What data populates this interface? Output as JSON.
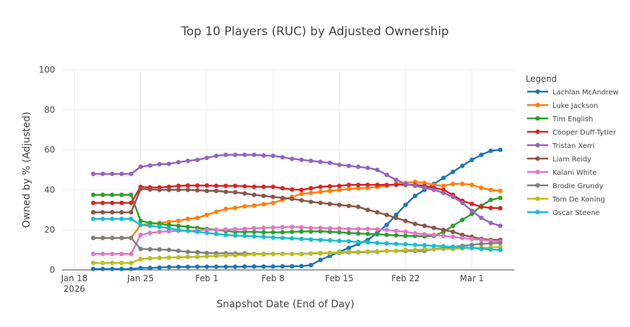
{
  "chart_data": {
    "type": "line",
    "title": "Top 10 Players (RUC) by Adjusted Ownership",
    "xlabel": "Snapshot Date (End of Day)",
    "ylabel": "Owned by % (Adjusted)",
    "ylim": [
      0,
      100
    ],
    "yticks": [
      0,
      20,
      40,
      60,
      80,
      100
    ],
    "xticks": [
      {
        "day": 0,
        "label": "Jan 18",
        "sublabel": "2026"
      },
      {
        "day": 7,
        "label": "Jan 25",
        "sublabel": ""
      },
      {
        "day": 14,
        "label": "Feb 1",
        "sublabel": ""
      },
      {
        "day": 21,
        "label": "Feb 8",
        "sublabel": ""
      },
      {
        "day": 28,
        "label": "Feb 15",
        "sublabel": ""
      },
      {
        "day": 35,
        "label": "Feb 22",
        "sublabel": ""
      },
      {
        "day": 42,
        "label": "Mar 1",
        "sublabel": ""
      }
    ],
    "xlim_days": [
      -1.3,
      46.5
    ],
    "x_days": [
      2,
      3,
      4,
      5,
      6,
      7,
      8,
      9,
      10,
      11,
      12,
      13,
      14,
      15,
      16,
      17,
      18,
      19,
      20,
      21,
      22,
      23,
      24,
      25,
      26,
      27,
      28,
      29,
      30,
      31,
      32,
      33,
      34,
      35,
      36,
      37,
      38,
      39,
      40,
      41,
      42,
      43,
      44,
      45
    ],
    "legend_title": "Legend",
    "legend_position": "right",
    "series": [
      {
        "name": "Lachlan McAndrew",
        "color": "#1f77b4",
        "values": [
          0.5,
          0.5,
          0.5,
          0.5,
          0.5,
          0.9,
          1.0,
          1.2,
          1.4,
          1.5,
          1.5,
          1.6,
          1.6,
          1.6,
          1.6,
          1.6,
          1.7,
          1.7,
          1.7,
          1.7,
          1.8,
          1.8,
          1.9,
          2.4,
          5.0,
          7.0,
          9.0,
          11.0,
          13.0,
          15.0,
          18.5,
          22.5,
          27.5,
          32.5,
          37.0,
          40.0,
          43.0,
          46.0,
          49.0,
          52.0,
          55.0,
          57.5,
          59.5,
          60.0
        ]
      },
      {
        "name": "Luke Jackson",
        "color": "#ff7f0e",
        "values": [
          16,
          16,
          16,
          16,
          16,
          22.5,
          23.0,
          23.5,
          24.0,
          24.5,
          25.5,
          26.0,
          27.5,
          29.0,
          30.5,
          31.0,
          31.8,
          32.2,
          32.8,
          33.5,
          35.0,
          36.5,
          38.0,
          38.5,
          39.0,
          39.5,
          40.0,
          40.5,
          40.8,
          41.0,
          41.5,
          42.0,
          43.0,
          43.5,
          44.0,
          43.5,
          42.5,
          42.0,
          43.0,
          43.0,
          42.5,
          41.0,
          40.0,
          39.5
        ]
      },
      {
        "name": "Tim English",
        "color": "#2ca02c",
        "values": [
          37.5,
          37.5,
          37.5,
          37.5,
          37.5,
          24.5,
          23.5,
          23.0,
          22.5,
          22.0,
          21.5,
          21.0,
          20.5,
          20.0,
          19.5,
          19.0,
          19.0,
          19.0,
          18.8,
          18.8,
          18.8,
          19.0,
          19.2,
          19.2,
          19.3,
          19.0,
          18.8,
          18.5,
          18.2,
          18.0,
          17.8,
          17.5,
          17.3,
          17.0,
          17.0,
          16.8,
          17.0,
          19.0,
          22.0,
          25.0,
          28.0,
          32.0,
          35.0,
          36.0
        ]
      },
      {
        "name": "Cooper Duff-Tytler",
        "color": "#d62728",
        "values": [
          33.5,
          33.5,
          33.5,
          33.5,
          33.5,
          41.5,
          41.2,
          41.2,
          41.5,
          42.0,
          42.2,
          42.2,
          42.2,
          42.0,
          42.0,
          42.0,
          41.8,
          41.5,
          41.5,
          41.5,
          40.8,
          40.2,
          40.0,
          40.8,
          41.5,
          41.8,
          42.0,
          42.5,
          42.5,
          42.5,
          42.5,
          42.5,
          42.5,
          42.5,
          42.5,
          42.0,
          41.0,
          40.0,
          37.5,
          34.5,
          33.0,
          31.5,
          31.0,
          30.8
        ]
      },
      {
        "name": "Tristan Xerri",
        "color": "#9467bd",
        "values": [
          48,
          48,
          48,
          48,
          48,
          51.5,
          52.2,
          52.8,
          53.0,
          53.8,
          54.5,
          55.0,
          56.0,
          57.0,
          57.5,
          57.5,
          57.5,
          57.5,
          57.2,
          57.0,
          56.3,
          55.5,
          55.0,
          54.5,
          54.0,
          53.5,
          52.5,
          52.0,
          51.5,
          51.0,
          50.0,
          47.5,
          45.0,
          43.0,
          42.0,
          41.0,
          40.0,
          38.5,
          36.5,
          33.5,
          29.5,
          26.0,
          23.5,
          22.0
        ]
      },
      {
        "name": "Liam Reidy",
        "color": "#8c564b",
        "values": [
          28.8,
          28.8,
          28.8,
          28.8,
          28.8,
          40.5,
          40.2,
          40.0,
          40.0,
          40.0,
          40.0,
          39.8,
          39.5,
          39.5,
          39.0,
          38.8,
          38.2,
          37.5,
          37.0,
          36.5,
          36.0,
          35.5,
          34.8,
          34.0,
          33.5,
          33.0,
          32.5,
          32.0,
          31.5,
          30.0,
          28.8,
          27.5,
          26.0,
          24.5,
          23.0,
          22.0,
          21.0,
          20.0,
          19.0,
          17.5,
          16.5,
          15.5,
          15.0,
          15.0
        ]
      },
      {
        "name": "Kalani White",
        "color": "#e377c2",
        "values": [
          8,
          8,
          8,
          8,
          8,
          17.5,
          18.5,
          19.0,
          19.3,
          19.5,
          19.5,
          19.8,
          20.0,
          20.0,
          20.2,
          20.3,
          20.5,
          20.8,
          21.0,
          21.2,
          21.3,
          21.5,
          21.3,
          21.0,
          21.0,
          20.8,
          20.7,
          20.5,
          20.5,
          20.5,
          20.3,
          20.0,
          19.5,
          19.0,
          18.3,
          17.8,
          17.5,
          17.0,
          16.5,
          16.0,
          15.5,
          15.0,
          14.5,
          14.2
        ]
      },
      {
        "name": "Brodie Grundy",
        "color": "#7f7f7f",
        "values": [
          16,
          16,
          16,
          16,
          16,
          10.5,
          10.3,
          10.2,
          10.0,
          9.5,
          9.0,
          8.8,
          8.5,
          8.3,
          8.3,
          8.2,
          8.2,
          8.0,
          8.0,
          8.0,
          8.0,
          8.0,
          8.0,
          8.2,
          8.3,
          8.5,
          8.5,
          8.8,
          8.8,
          9.0,
          9.0,
          9.5,
          9.5,
          9.5,
          9.5,
          9.5,
          10.5,
          11.0,
          11.5,
          12.0,
          12.5,
          13.0,
          13.3,
          13.5
        ]
      },
      {
        "name": "Tom De Koning",
        "color": "#bcbd22",
        "values": [
          3.5,
          3.5,
          3.5,
          3.5,
          3.5,
          5.5,
          5.8,
          6.0,
          6.2,
          6.3,
          6.5,
          6.5,
          6.8,
          7.0,
          7.2,
          7.3,
          7.5,
          7.8,
          7.8,
          8.0,
          8.0,
          8.0,
          8.0,
          8.3,
          8.5,
          8.5,
          8.8,
          9.0,
          9.0,
          9.2,
          9.3,
          9.5,
          9.5,
          10.0,
          10.0,
          10.3,
          10.3,
          10.5,
          10.5,
          10.8,
          11.0,
          11.0,
          11.2,
          11.5
        ]
      },
      {
        "name": "Oscar Steene",
        "color": "#17becf",
        "values": [
          25.5,
          25.5,
          25.5,
          25.5,
          25.5,
          22.5,
          22.0,
          21.5,
          20.8,
          20.0,
          19.5,
          19.0,
          18.5,
          18.0,
          17.5,
          17.2,
          17.0,
          16.8,
          16.5,
          16.2,
          16.0,
          15.8,
          15.5,
          15.2,
          15.0,
          14.8,
          14.5,
          14.3,
          14.0,
          13.8,
          13.5,
          13.2,
          13.0,
          12.8,
          12.5,
          12.3,
          12.0,
          11.8,
          11.5,
          11.2,
          11.0,
          10.5,
          10.2,
          10.0
        ]
      }
    ]
  }
}
